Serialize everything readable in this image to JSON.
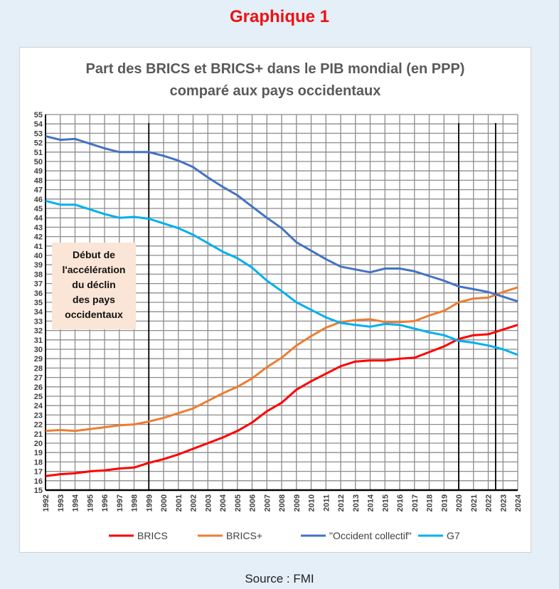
{
  "heading": "Graphique 1",
  "source": "Source : FMI",
  "chart_data": {
    "type": "line",
    "title": [
      "Part des BRICS et BRICS+ dans le PIB mondial (en PPP)",
      "comparé aux pays occidentaux"
    ],
    "xlabel": "",
    "ylabel": "",
    "ylim": [
      15,
      55
    ],
    "grid": true,
    "legend_position": "bottom",
    "x": [
      1992,
      1993,
      1994,
      1995,
      1996,
      1997,
      1998,
      1999,
      2000,
      2001,
      2002,
      2003,
      2004,
      2005,
      2006,
      2007,
      2008,
      2009,
      2010,
      2011,
      2012,
      2013,
      2014,
      2015,
      2016,
      2017,
      2018,
      2019,
      2020,
      2021,
      2022,
      2023,
      2024
    ],
    "vertical_markers": [
      1999,
      2020,
      2022.5
    ],
    "annotation": [
      "Début de",
      "l'accélération",
      "du déclin",
      "des pays",
      "occidentaux"
    ],
    "series": [
      {
        "name": "BRICS",
        "color": "#ff0000",
        "values": [
          16.5,
          16.7,
          16.8,
          17.0,
          17.1,
          17.3,
          17.4,
          17.9,
          18.3,
          18.8,
          19.4,
          20.0,
          20.6,
          21.3,
          22.2,
          23.4,
          24.3,
          25.7,
          26.6,
          27.4,
          28.2,
          28.7,
          28.8,
          28.8,
          29.0,
          29.1,
          29.7,
          30.3,
          31.1,
          31.5,
          31.6,
          32.1,
          32.6
        ]
      },
      {
        "name": "BRICS+",
        "color": "#ed7d31",
        "values": [
          21.3,
          21.4,
          21.3,
          21.5,
          21.7,
          21.9,
          22.0,
          22.3,
          22.7,
          23.2,
          23.7,
          24.5,
          25.3,
          26.0,
          26.9,
          28.1,
          29.1,
          30.4,
          31.4,
          32.3,
          32.9,
          33.1,
          33.2,
          32.9,
          32.9,
          33.0,
          33.6,
          34.1,
          35.0,
          35.4,
          35.5,
          36.1,
          36.6
        ]
      },
      {
        "name": "\"Occident collectif\"",
        "color": "#4472c4",
        "values": [
          52.7,
          52.3,
          52.4,
          51.9,
          51.4,
          51.0,
          51.0,
          51.0,
          50.6,
          50.1,
          49.4,
          48.3,
          47.3,
          46.4,
          45.2,
          44.0,
          42.9,
          41.4,
          40.5,
          39.6,
          38.8,
          38.5,
          38.2,
          38.6,
          38.6,
          38.3,
          37.8,
          37.3,
          36.7,
          36.4,
          36.1,
          35.6,
          35.1
        ]
      },
      {
        "name": "G7",
        "color": "#00b0f0",
        "values": [
          45.8,
          45.4,
          45.4,
          44.9,
          44.4,
          44.0,
          44.1,
          43.9,
          43.4,
          42.9,
          42.2,
          41.3,
          40.4,
          39.7,
          38.7,
          37.3,
          36.2,
          35.0,
          34.2,
          33.4,
          32.8,
          32.6,
          32.4,
          32.7,
          32.6,
          32.2,
          31.8,
          31.5,
          30.9,
          30.7,
          30.4,
          30.0,
          29.4
        ]
      }
    ]
  }
}
